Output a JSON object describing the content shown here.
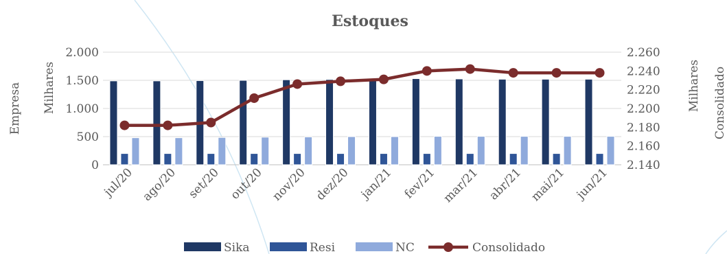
{
  "chart_data": {
    "type": "bar",
    "title": "Estoques",
    "categories": [
      "jul/20",
      "ago/20",
      "set/20",
      "out/20",
      "nov/20",
      "dez/20",
      "jan/21",
      "fev/21",
      "mar/21",
      "abr/21",
      "mai/21",
      "jun/21"
    ],
    "series": [
      {
        "name": "Sika",
        "type": "bar",
        "axis": "left",
        "color": "#1f3864",
        "values": [
          1490,
          1490,
          1495,
          1500,
          1510,
          1515,
          1520,
          1530,
          1525,
          1520,
          1520,
          1520
        ]
      },
      {
        "name": "Resi",
        "type": "bar",
        "axis": "left",
        "color": "#2f5597",
        "values": [
          200,
          200,
          200,
          200,
          200,
          200,
          200,
          200,
          200,
          200,
          200,
          200
        ]
      },
      {
        "name": "NC",
        "type": "bar",
        "axis": "left",
        "color": "#8faadc",
        "values": [
          480,
          480,
          485,
          490,
          495,
          500,
          500,
          505,
          505,
          505,
          505,
          505
        ]
      },
      {
        "name": "Consolidado",
        "type": "line",
        "axis": "right",
        "color": "#7b2c2c",
        "values": [
          2182,
          2182,
          2185,
          2211,
          2226,
          2229,
          2231,
          2240,
          2242,
          2238,
          2238,
          2238
        ]
      }
    ],
    "left_axis": {
      "unit_label": "Milhares",
      "title": "Empresa",
      "range": [
        0,
        2000
      ],
      "ticks": [
        0,
        500,
        1000,
        1500,
        2000
      ],
      "tick_labels": [
        "0",
        "500",
        "1.000",
        "1.500",
        "2.000"
      ]
    },
    "right_axis": {
      "unit_label": "Milhares",
      "title": "Consolidado",
      "range": [
        2140,
        2260
      ],
      "ticks": [
        2140,
        2160,
        2180,
        2200,
        2220,
        2240,
        2260
      ],
      "tick_labels": [
        "2.140",
        "2.160",
        "2.180",
        "2.200",
        "2.220",
        "2.240",
        "2.260"
      ]
    },
    "grid": true,
    "legend_position": "bottom"
  }
}
